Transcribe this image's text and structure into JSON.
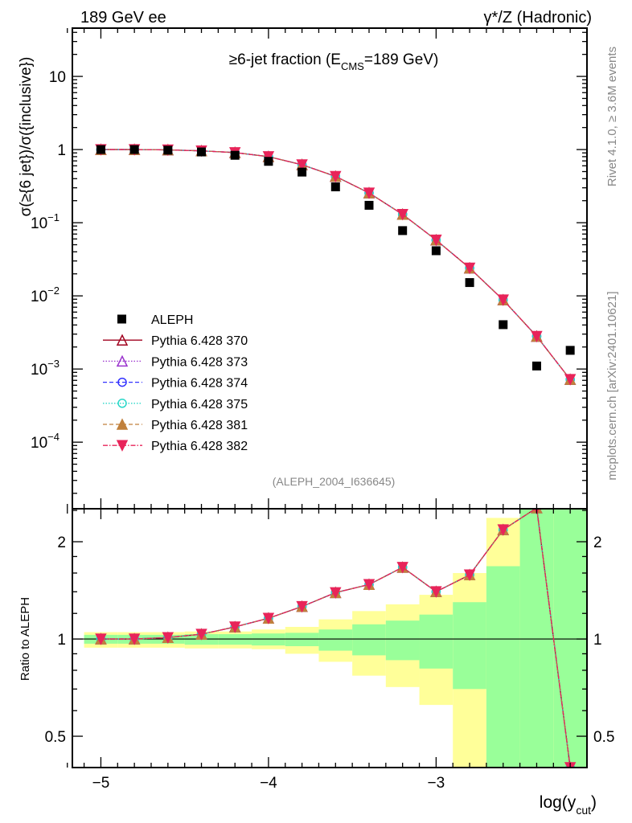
{
  "header": {
    "left": "189 GeV ee",
    "right": "γ*/Z (Hadronic)"
  },
  "side_texts": {
    "rivet": "Rivet 4.1.0, ≥ 3.6M events",
    "mcplots": "mcplots.cern.ch [arXiv:2401.10621]"
  },
  "chart_data": [
    {
      "type": "scatter",
      "title": "≥6-jet fraction (E",
      "title_sub": "CMS",
      "title_end": "=189 GeV)",
      "analysis_id": "(ALEPH_2004_I636645)",
      "ylabel": "σ(≥{6 jet})/σ({inclusive})",
      "yscale": "log",
      "ylim": [
        1.23e-05,
        45.7
      ],
      "xlim": [
        -5.17,
        -2.1
      ],
      "yticks": [
        {
          "v": 10,
          "label": "10"
        },
        {
          "v": 1,
          "label": "1"
        },
        {
          "v": 0.1,
          "label": "10",
          "exp": "−1"
        },
        {
          "v": 0.01,
          "label": "10",
          "exp": "−2"
        },
        {
          "v": 0.001,
          "label": "10",
          "exp": "−3"
        },
        {
          "v": 0.0001,
          "label": "10",
          "exp": "−4"
        }
      ],
      "x": [
        -5.0,
        -4.8,
        -4.6,
        -4.4,
        -4.2,
        -4.0,
        -3.8,
        -3.6,
        -3.4,
        -3.2,
        -3.0,
        -2.8,
        -2.6,
        -2.4,
        -2.2
      ],
      "data": {
        "name": "ALEPH",
        "values": [
          1.0,
          1.0,
          0.98,
          0.928,
          0.835,
          0.69,
          0.492,
          0.309,
          0.173,
          0.078,
          0.0414,
          0.0152,
          0.00404,
          0.0011,
          0.0018
        ]
      },
      "series": [
        {
          "name": "Pythia 6.428 370",
          "color": "#a0001e",
          "dash": "",
          "marker": "triangle-open",
          "values": [
            1.0,
            1.0,
            0.99,
            0.96,
            0.91,
            0.8,
            0.62,
            0.43,
            0.255,
            0.13,
            0.058,
            0.024,
            0.0088,
            0.0028,
            0.00072
          ]
        },
        {
          "name": "Pythia 6.428 373",
          "color": "#9a32cd",
          "dash": "1.5,2",
          "marker": "triangle-open",
          "values": [
            1.0,
            1.0,
            0.99,
            0.96,
            0.91,
            0.8,
            0.62,
            0.43,
            0.255,
            0.13,
            0.058,
            0.024,
            0.0088,
            0.0028,
            0.00072
          ]
        },
        {
          "name": "Pythia 6.428 374",
          "color": "#3232ff",
          "dash": "5,3",
          "marker": "circle-open",
          "values": [
            1.0,
            1.0,
            0.99,
            0.96,
            0.91,
            0.8,
            0.62,
            0.43,
            0.255,
            0.13,
            0.058,
            0.024,
            0.0088,
            0.0028,
            0.00072
          ]
        },
        {
          "name": "Pythia 6.428 375",
          "color": "#28d7c8",
          "dash": "1.5,2",
          "marker": "circle-open",
          "values": [
            1.0,
            1.0,
            0.99,
            0.96,
            0.91,
            0.8,
            0.62,
            0.43,
            0.255,
            0.13,
            0.058,
            0.024,
            0.0088,
            0.0028,
            0.00072
          ]
        },
        {
          "name": "Pythia 6.428 381",
          "color": "#c0803c",
          "dash": "5,3",
          "marker": "triangle-filled",
          "values": [
            1.0,
            1.0,
            0.99,
            0.96,
            0.91,
            0.8,
            0.62,
            0.43,
            0.255,
            0.13,
            0.058,
            0.024,
            0.0088,
            0.0028,
            0.00072
          ]
        },
        {
          "name": "Pythia 6.428 382",
          "color": "#e8245a",
          "dash": "6,2,1.5,2",
          "marker": "triangle-down-filled",
          "values": [
            1.0,
            1.0,
            0.99,
            0.96,
            0.91,
            0.8,
            0.62,
            0.43,
            0.255,
            0.13,
            0.058,
            0.024,
            0.0088,
            0.0028,
            0.00072
          ]
        }
      ]
    },
    {
      "type": "line",
      "ylabel": "Ratio to ALEPH",
      "xlabel": "log(y",
      "xlabel_sub": "cut",
      "xlabel_end": ")",
      "yscale": "log",
      "ylim": [
        0.4,
        2.53
      ],
      "xlim": [
        -5.17,
        -2.1
      ],
      "yticks": [
        {
          "v": 2,
          "label": "2"
        },
        {
          "v": 1,
          "label": "1"
        },
        {
          "v": 0.5,
          "label": "0.5"
        }
      ],
      "xticks": [
        {
          "v": -5,
          "label": "−5"
        },
        {
          "v": -4,
          "label": "−4"
        },
        {
          "v": -3,
          "label": "−3"
        }
      ],
      "bin_width": 0.2,
      "band_total_up": [
        1.05,
        1.05,
        1.05,
        1.055,
        1.055,
        1.07,
        1.09,
        1.15,
        1.22,
        1.28,
        1.37,
        1.6,
        2.37,
        10,
        10
      ],
      "band_total_down": [
        0.94,
        0.94,
        0.94,
        0.935,
        0.935,
        0.93,
        0.9,
        0.85,
        0.77,
        0.71,
        0.625,
        0.01,
        0.01,
        0.01,
        0.01
      ],
      "band_stat_up": [
        1.03,
        1.03,
        1.03,
        1.035,
        1.035,
        1.04,
        1.045,
        1.07,
        1.11,
        1.14,
        1.19,
        1.3,
        1.68,
        10,
        10
      ],
      "band_stat_down": [
        0.967,
        0.967,
        0.967,
        0.96,
        0.96,
        0.955,
        0.95,
        0.92,
        0.89,
        0.86,
        0.81,
        0.7,
        0.01,
        0.01,
        0.01
      ],
      "band_colors": {
        "total": "#ffff99",
        "stat": "#99ff99"
      }
    }
  ]
}
